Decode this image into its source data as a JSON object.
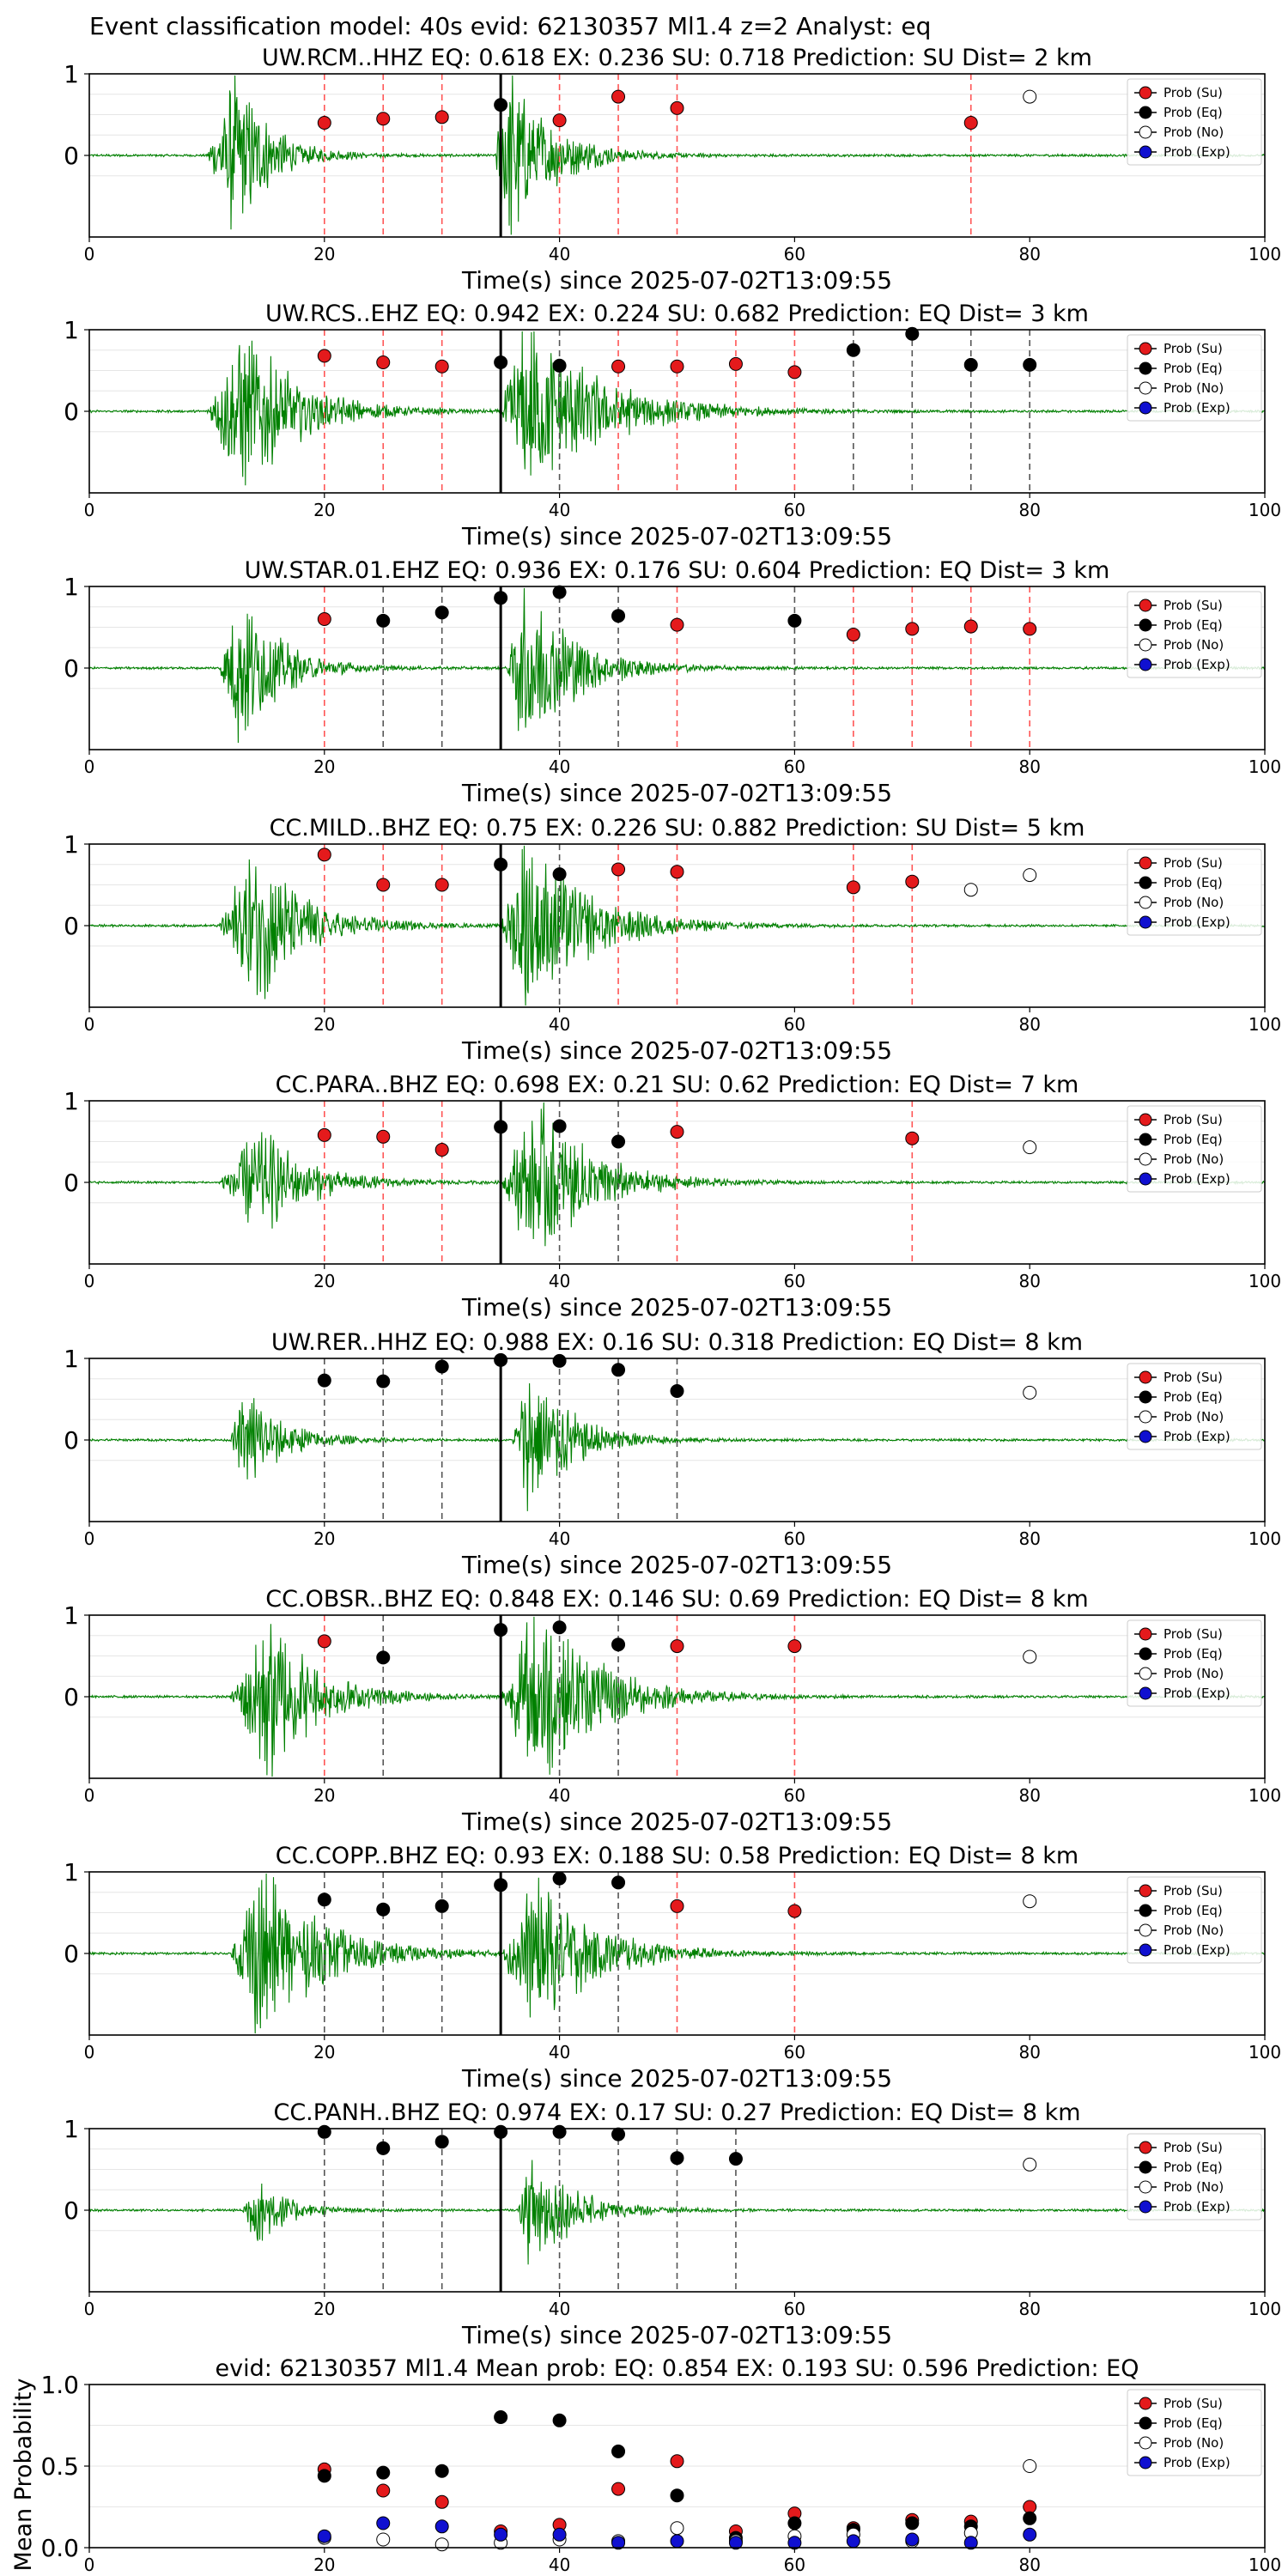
{
  "figure": {
    "suptitle": "Event classification model: 40s evid: 62130357 Ml1.4 z=2 Analyst: eq",
    "x_axis_label": "Time(s) since 2025-07-02T13:09:55",
    "legend": [
      "Prob (Su)",
      "Prob (Eq)",
      "Prob (No)",
      "Prob (Exp)"
    ],
    "colors": {
      "su": "#e41a1c",
      "eq": "#000000",
      "no": "#ffffff",
      "exp": "#1010d0",
      "trace": "#008000",
      "su_line": "#ff5555",
      "eq_line": "#555555"
    }
  },
  "chart_data": [
    {
      "type": "scatter",
      "title": "UW.RCM..HHZ   EQ: 0.618  EX: 0.236  SU: 0.718   Prediction: SU    Dist= 2 km",
      "xlabel": "Time(s) since 2025-07-02T13:09:55",
      "xlim": [
        0,
        100
      ],
      "ylim": [
        -1,
        1
      ],
      "xticks": [
        "0",
        "20",
        "40",
        "60",
        "80",
        "100"
      ],
      "yticks": [
        "0",
        "1"
      ],
      "grid": true,
      "legend_position": "upper right",
      "pick_time": 35,
      "trace_bursts": [
        {
          "start": 10,
          "peak": 12.5,
          "amp": 0.85,
          "decay": 2.8
        },
        {
          "start": 34.5,
          "peak": 35.5,
          "amp": 0.95,
          "decay": 3.5
        }
      ],
      "points": [
        {
          "x": 20,
          "y": 0.4,
          "cls": "su"
        },
        {
          "x": 25,
          "y": 0.45,
          "cls": "su"
        },
        {
          "x": 30,
          "y": 0.47,
          "cls": "su"
        },
        {
          "x": 35,
          "y": 0.62,
          "cls": "eq"
        },
        {
          "x": 40,
          "y": 0.43,
          "cls": "su"
        },
        {
          "x": 45,
          "y": 0.72,
          "cls": "su"
        },
        {
          "x": 50,
          "y": 0.58,
          "cls": "su"
        },
        {
          "x": 75,
          "y": 0.4,
          "cls": "su"
        },
        {
          "x": 80,
          "y": 0.72,
          "cls": "no"
        }
      ]
    },
    {
      "type": "scatter",
      "title": "UW.RCS..EHZ   EQ: 0.942  EX: 0.224  SU: 0.682   Prediction: EQ    Dist= 3 km",
      "xlabel": "Time(s) since 2025-07-02T13:09:55",
      "xlim": [
        0,
        100
      ],
      "ylim": [
        -1,
        1
      ],
      "xticks": [
        "0",
        "20",
        "40",
        "60",
        "80",
        "100"
      ],
      "yticks": [
        "0",
        "1"
      ],
      "grid": true,
      "legend_position": "upper right",
      "pick_time": 35,
      "trace_bursts": [
        {
          "start": 10,
          "peak": 13,
          "amp": 0.85,
          "decay": 4.5
        },
        {
          "start": 35,
          "peak": 37,
          "amp": 0.95,
          "decay": 6
        }
      ],
      "points": [
        {
          "x": 20,
          "y": 0.68,
          "cls": "su"
        },
        {
          "x": 25,
          "y": 0.6,
          "cls": "su"
        },
        {
          "x": 30,
          "y": 0.55,
          "cls": "su"
        },
        {
          "x": 35,
          "y": 0.6,
          "cls": "eq"
        },
        {
          "x": 40,
          "y": 0.56,
          "cls": "eq"
        },
        {
          "x": 45,
          "y": 0.55,
          "cls": "su"
        },
        {
          "x": 50,
          "y": 0.55,
          "cls": "su"
        },
        {
          "x": 55,
          "y": 0.58,
          "cls": "su"
        },
        {
          "x": 60,
          "y": 0.48,
          "cls": "su"
        },
        {
          "x": 65,
          "y": 0.75,
          "cls": "eq"
        },
        {
          "x": 70,
          "y": 0.95,
          "cls": "eq"
        },
        {
          "x": 75,
          "y": 0.57,
          "cls": "eq"
        },
        {
          "x": 80,
          "y": 0.57,
          "cls": "eq"
        }
      ]
    },
    {
      "type": "scatter",
      "title": "UW.STAR.01.EHZ   EQ: 0.936  EX: 0.176  SU: 0.604   Prediction: EQ    Dist= 3 km",
      "xlabel": "Time(s) since 2025-07-02T13:09:55",
      "xlim": [
        0,
        100
      ],
      "ylim": [
        -1,
        1
      ],
      "xticks": [
        "0",
        "20",
        "40",
        "60",
        "80",
        "100"
      ],
      "yticks": [
        "0",
        "1"
      ],
      "grid": true,
      "legend_position": "upper right",
      "pick_time": 35,
      "trace_bursts": [
        {
          "start": 11,
          "peak": 12.8,
          "amp": 0.8,
          "decay": 3.2
        },
        {
          "start": 35.5,
          "peak": 37,
          "amp": 0.9,
          "decay": 4
        }
      ],
      "points": [
        {
          "x": 20,
          "y": 0.6,
          "cls": "su"
        },
        {
          "x": 25,
          "y": 0.58,
          "cls": "eq"
        },
        {
          "x": 30,
          "y": 0.68,
          "cls": "eq"
        },
        {
          "x": 35,
          "y": 0.86,
          "cls": "eq"
        },
        {
          "x": 40,
          "y": 0.93,
          "cls": "eq"
        },
        {
          "x": 45,
          "y": 0.64,
          "cls": "eq"
        },
        {
          "x": 50,
          "y": 0.53,
          "cls": "su"
        },
        {
          "x": 60,
          "y": 0.58,
          "cls": "eq"
        },
        {
          "x": 65,
          "y": 0.41,
          "cls": "su"
        },
        {
          "x": 70,
          "y": 0.48,
          "cls": "su"
        },
        {
          "x": 75,
          "y": 0.51,
          "cls": "su"
        },
        {
          "x": 80,
          "y": 0.48,
          "cls": "su"
        }
      ]
    },
    {
      "type": "scatter",
      "title": "CC.MILD..BHZ   EQ: 0.75  EX: 0.226  SU: 0.882   Prediction: SU    Dist= 5 km",
      "xlabel": "Time(s) since 2025-07-02T13:09:55",
      "xlim": [
        0,
        100
      ],
      "ylim": [
        -1,
        1
      ],
      "xticks": [
        "0",
        "20",
        "40",
        "60",
        "80",
        "100"
      ],
      "yticks": [
        "0",
        "1"
      ],
      "grid": true,
      "legend_position": "upper right",
      "pick_time": 35,
      "trace_bursts": [
        {
          "start": 11,
          "peak": 14,
          "amp": 0.85,
          "decay": 4
        },
        {
          "start": 35,
          "peak": 37,
          "amp": 0.95,
          "decay": 5
        }
      ],
      "points": [
        {
          "x": 20,
          "y": 0.87,
          "cls": "su"
        },
        {
          "x": 25,
          "y": 0.5,
          "cls": "su"
        },
        {
          "x": 30,
          "y": 0.5,
          "cls": "su"
        },
        {
          "x": 35,
          "y": 0.75,
          "cls": "eq"
        },
        {
          "x": 40,
          "y": 0.63,
          "cls": "eq"
        },
        {
          "x": 45,
          "y": 0.69,
          "cls": "su"
        },
        {
          "x": 50,
          "y": 0.66,
          "cls": "su"
        },
        {
          "x": 65,
          "y": 0.47,
          "cls": "su"
        },
        {
          "x": 70,
          "y": 0.54,
          "cls": "su"
        },
        {
          "x": 75,
          "y": 0.44,
          "cls": "no"
        },
        {
          "x": 80,
          "y": 0.62,
          "cls": "no"
        }
      ]
    },
    {
      "type": "scatter",
      "title": "CC.PARA..BHZ   EQ: 0.698  EX: 0.21  SU: 0.62   Prediction: EQ    Dist= 7 km",
      "xlabel": "Time(s) since 2025-07-02T13:09:55",
      "xlim": [
        0,
        100
      ],
      "ylim": [
        -1,
        1
      ],
      "xticks": [
        "0",
        "20",
        "40",
        "60",
        "80",
        "100"
      ],
      "yticks": [
        "0",
        "1"
      ],
      "grid": true,
      "legend_position": "upper right",
      "pick_time": 35,
      "trace_bursts": [
        {
          "start": 11,
          "peak": 14.5,
          "amp": 0.55,
          "decay": 4
        },
        {
          "start": 35,
          "peak": 38,
          "amp": 0.85,
          "decay": 4.5
        }
      ],
      "points": [
        {
          "x": 20,
          "y": 0.58,
          "cls": "su"
        },
        {
          "x": 25,
          "y": 0.56,
          "cls": "su"
        },
        {
          "x": 30,
          "y": 0.4,
          "cls": "su"
        },
        {
          "x": 35,
          "y": 0.68,
          "cls": "eq"
        },
        {
          "x": 40,
          "y": 0.69,
          "cls": "eq"
        },
        {
          "x": 45,
          "y": 0.5,
          "cls": "eq"
        },
        {
          "x": 50,
          "y": 0.62,
          "cls": "su"
        },
        {
          "x": 70,
          "y": 0.54,
          "cls": "su"
        },
        {
          "x": 80,
          "y": 0.43,
          "cls": "no"
        }
      ]
    },
    {
      "type": "scatter",
      "title": "UW.RER..HHZ   EQ: 0.988  EX: 0.16  SU: 0.318   Prediction: EQ    Dist= 8 km",
      "xlabel": "Time(s) since 2025-07-02T13:09:55",
      "xlim": [
        0,
        100
      ],
      "ylim": [
        -1,
        1
      ],
      "xticks": [
        "0",
        "20",
        "40",
        "60",
        "80",
        "100"
      ],
      "yticks": [
        "0",
        "1"
      ],
      "grid": true,
      "legend_position": "upper right",
      "pick_time": 35,
      "trace_bursts": [
        {
          "start": 12,
          "peak": 13.3,
          "amp": 0.55,
          "decay": 3
        },
        {
          "start": 36,
          "peak": 37.2,
          "amp": 0.8,
          "decay": 3.5
        }
      ],
      "points": [
        {
          "x": 20,
          "y": 0.73,
          "cls": "eq"
        },
        {
          "x": 25,
          "y": 0.72,
          "cls": "eq"
        },
        {
          "x": 30,
          "y": 0.9,
          "cls": "eq"
        },
        {
          "x": 35,
          "y": 0.98,
          "cls": "eq"
        },
        {
          "x": 40,
          "y": 0.97,
          "cls": "eq"
        },
        {
          "x": 45,
          "y": 0.86,
          "cls": "eq"
        },
        {
          "x": 50,
          "y": 0.6,
          "cls": "eq"
        },
        {
          "x": 80,
          "y": 0.58,
          "cls": "no"
        }
      ]
    },
    {
      "type": "scatter",
      "title": "CC.OBSR..BHZ   EQ: 0.848  EX: 0.146  SU: 0.69   Prediction: EQ    Dist= 8 km",
      "xlabel": "Time(s) since 2025-07-02T13:09:55",
      "xlim": [
        0,
        100
      ],
      "ylim": [
        -1,
        1
      ],
      "xticks": [
        "0",
        "20",
        "40",
        "60",
        "80",
        "100"
      ],
      "yticks": [
        "0",
        "1"
      ],
      "grid": true,
      "legend_position": "upper right",
      "pick_time": 35,
      "trace_bursts": [
        {
          "start": 12,
          "peak": 15,
          "amp": 0.9,
          "decay": 4
        },
        {
          "start": 35,
          "peak": 38,
          "amp": 0.95,
          "decay": 5
        }
      ],
      "points": [
        {
          "x": 20,
          "y": 0.68,
          "cls": "su"
        },
        {
          "x": 25,
          "y": 0.48,
          "cls": "eq"
        },
        {
          "x": 35,
          "y": 0.82,
          "cls": "eq"
        },
        {
          "x": 40,
          "y": 0.85,
          "cls": "eq"
        },
        {
          "x": 45,
          "y": 0.64,
          "cls": "eq"
        },
        {
          "x": 50,
          "y": 0.62,
          "cls": "su"
        },
        {
          "x": 60,
          "y": 0.62,
          "cls": "su"
        },
        {
          "x": 80,
          "y": 0.49,
          "cls": "no"
        }
      ]
    },
    {
      "type": "scatter",
      "title": "CC.COPP..BHZ   EQ: 0.93  EX: 0.188  SU: 0.58   Prediction: EQ    Dist= 8 km",
      "xlabel": "Time(s) since 2025-07-02T13:09:55",
      "xlim": [
        0,
        100
      ],
      "ylim": [
        -1,
        1
      ],
      "xticks": [
        "0",
        "20",
        "40",
        "60",
        "80",
        "100"
      ],
      "yticks": [
        "0",
        "1"
      ],
      "grid": true,
      "legend_position": "upper right",
      "pick_time": 35,
      "trace_bursts": [
        {
          "start": 12,
          "peak": 14.5,
          "amp": 0.9,
          "decay": 5
        },
        {
          "start": 35,
          "peak": 38,
          "amp": 0.75,
          "decay": 5
        }
      ],
      "points": [
        {
          "x": 20,
          "y": 0.66,
          "cls": "eq"
        },
        {
          "x": 25,
          "y": 0.54,
          "cls": "eq"
        },
        {
          "x": 30,
          "y": 0.58,
          "cls": "eq"
        },
        {
          "x": 35,
          "y": 0.84,
          "cls": "eq"
        },
        {
          "x": 40,
          "y": 0.92,
          "cls": "eq"
        },
        {
          "x": 45,
          "y": 0.87,
          "cls": "eq"
        },
        {
          "x": 50,
          "y": 0.58,
          "cls": "su"
        },
        {
          "x": 60,
          "y": 0.52,
          "cls": "su"
        },
        {
          "x": 80,
          "y": 0.64,
          "cls": "no"
        }
      ]
    },
    {
      "type": "scatter",
      "title": "CC.PANH..BHZ   EQ: 0.974  EX: 0.17  SU: 0.27   Prediction: EQ    Dist= 8 km",
      "xlabel": "Time(s) since 2025-07-02T13:09:55",
      "xlim": [
        0,
        100
      ],
      "ylim": [
        -1,
        1
      ],
      "xticks": [
        "0",
        "20",
        "40",
        "60",
        "80",
        "100"
      ],
      "yticks": [
        "0",
        "1"
      ],
      "grid": true,
      "legend_position": "upper right",
      "pick_time": 35,
      "trace_bursts": [
        {
          "start": 13,
          "peak": 14.2,
          "amp": 0.35,
          "decay": 2.5
        },
        {
          "start": 36.5,
          "peak": 37.5,
          "amp": 0.6,
          "decay": 3.5
        }
      ],
      "points": [
        {
          "x": 20,
          "y": 0.96,
          "cls": "eq"
        },
        {
          "x": 25,
          "y": 0.76,
          "cls": "eq"
        },
        {
          "x": 30,
          "y": 0.84,
          "cls": "eq"
        },
        {
          "x": 35,
          "y": 0.96,
          "cls": "eq"
        },
        {
          "x": 40,
          "y": 0.96,
          "cls": "eq"
        },
        {
          "x": 45,
          "y": 0.93,
          "cls": "eq"
        },
        {
          "x": 50,
          "y": 0.64,
          "cls": "eq"
        },
        {
          "x": 55,
          "y": 0.63,
          "cls": "eq"
        },
        {
          "x": 80,
          "y": 0.56,
          "cls": "no"
        }
      ]
    },
    {
      "type": "scatter",
      "title": "evid: 62130357  Ml1.4   Mean prob:    EQ: 0.854  EX: 0.193  SU: 0.596   Prediction: EQ",
      "xlabel": "",
      "ylabel": "Mean Probability",
      "xlim": [
        0,
        100
      ],
      "ylim": [
        0,
        1
      ],
      "xticks": [
        "0",
        "20",
        "40",
        "60",
        "80",
        "100"
      ],
      "yticks": [
        "0.0",
        "0.5",
        "1.0"
      ],
      "grid": true,
      "legend_position": "upper right",
      "series": [
        {
          "name": "Prob (Su)",
          "cls": "su",
          "x": [
            20,
            25,
            30,
            35,
            40,
            45,
            50,
            55,
            60,
            65,
            70,
            75,
            80
          ],
          "values": [
            0.48,
            0.35,
            0.28,
            0.1,
            0.14,
            0.36,
            0.53,
            0.1,
            0.21,
            0.12,
            0.17,
            0.16,
            0.25
          ]
        },
        {
          "name": "Prob (Eq)",
          "cls": "eq",
          "x": [
            20,
            25,
            30,
            35,
            40,
            45,
            50,
            55,
            60,
            65,
            70,
            75,
            80
          ],
          "values": [
            0.44,
            0.46,
            0.47,
            0.8,
            0.78,
            0.59,
            0.32,
            0.06,
            0.15,
            0.11,
            0.15,
            0.13,
            0.18
          ]
        },
        {
          "name": "Prob (No)",
          "cls": "no",
          "x": [
            20,
            25,
            30,
            35,
            40,
            45,
            50,
            55,
            60,
            65,
            70,
            75,
            80
          ],
          "values": [
            0.06,
            0.05,
            0.02,
            0.03,
            0.05,
            0.04,
            0.12,
            0.04,
            0.07,
            0.08,
            0.04,
            0.09,
            0.5
          ]
        },
        {
          "name": "Prob (Exp)",
          "cls": "exp",
          "x": [
            20,
            25,
            30,
            35,
            40,
            45,
            50,
            55,
            60,
            65,
            70,
            75,
            80
          ],
          "values": [
            0.07,
            0.15,
            0.13,
            0.08,
            0.08,
            0.03,
            0.04,
            0.03,
            0.03,
            0.04,
            0.05,
            0.03,
            0.08
          ]
        }
      ]
    }
  ]
}
